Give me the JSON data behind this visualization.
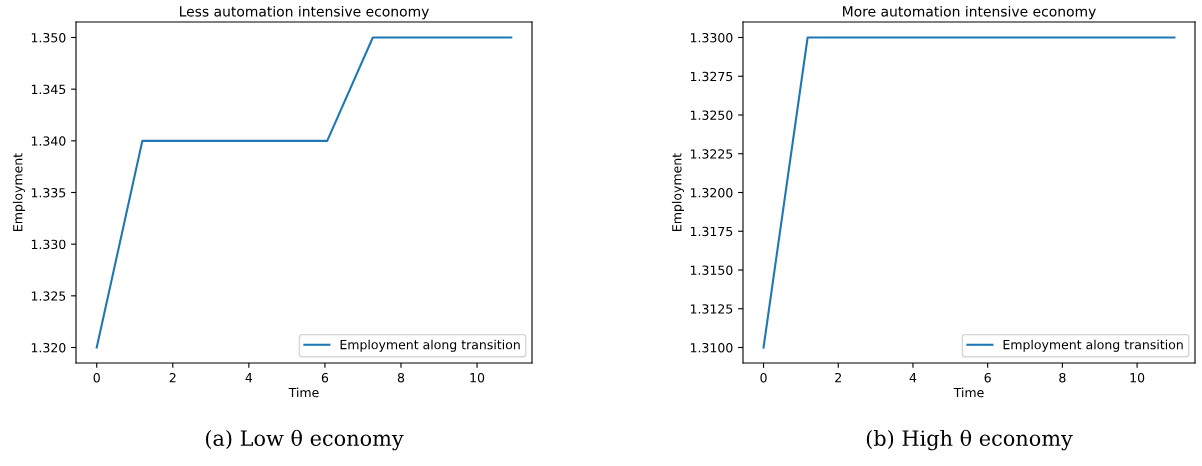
{
  "chart_data": [
    {
      "type": "line",
      "title": "Less automation intensive economy",
      "xlabel": "Time",
      "ylabel": "Employment",
      "x": [
        0,
        1.2,
        6.06,
        7.26,
        10.9
      ],
      "series": [
        {
          "name": "Employment along transition",
          "color": "#1f77b4",
          "values": [
            1.32,
            1.34,
            1.34,
            1.35,
            1.35
          ]
        }
      ],
      "xlim": [
        -0.545,
        11.445
      ],
      "xticks": [
        0,
        2,
        4,
        6,
        8,
        10
      ],
      "ylim": [
        1.3185,
        1.3515
      ],
      "yticks": [
        {
          "value": 1.32,
          "label": "1.320"
        },
        {
          "value": 1.325,
          "label": "1.325"
        },
        {
          "value": 1.33,
          "label": "1.330"
        },
        {
          "value": 1.335,
          "label": "1.335"
        },
        {
          "value": 1.34,
          "label": "1.340"
        },
        {
          "value": 1.345,
          "label": "1.345"
        },
        {
          "value": 1.35,
          "label": "1.350"
        }
      ],
      "legend": "bottom right",
      "annotations": [
        "(a) Low θ economy"
      ]
    },
    {
      "type": "line",
      "title": "More automation intensive economy",
      "xlabel": "Time",
      "ylabel": "Employment",
      "x": [
        0,
        1.18,
        11.0
      ],
      "series": [
        {
          "name": "Employment along transition",
          "color": "#1f77b4",
          "values": [
            1.31,
            1.33,
            1.33
          ]
        }
      ],
      "xlim": [
        -0.55,
        11.55
      ],
      "xticks": [
        0,
        2,
        4,
        6,
        8,
        10
      ],
      "ylim": [
        1.309,
        1.331
      ],
      "yticks": [
        {
          "value": 1.31,
          "label": "1.3100"
        },
        {
          "value": 1.3125,
          "label": "1.3125"
        },
        {
          "value": 1.315,
          "label": "1.3150"
        },
        {
          "value": 1.3175,
          "label": "1.3175"
        },
        {
          "value": 1.32,
          "label": "1.3200"
        },
        {
          "value": 1.3225,
          "label": "1.3225"
        },
        {
          "value": 1.325,
          "label": "1.3250"
        },
        {
          "value": 1.3275,
          "label": "1.3275"
        },
        {
          "value": 1.33,
          "label": "1.3300"
        }
      ],
      "legend": "bottom right",
      "annotations": [
        "(b) High θ economy"
      ]
    }
  ]
}
